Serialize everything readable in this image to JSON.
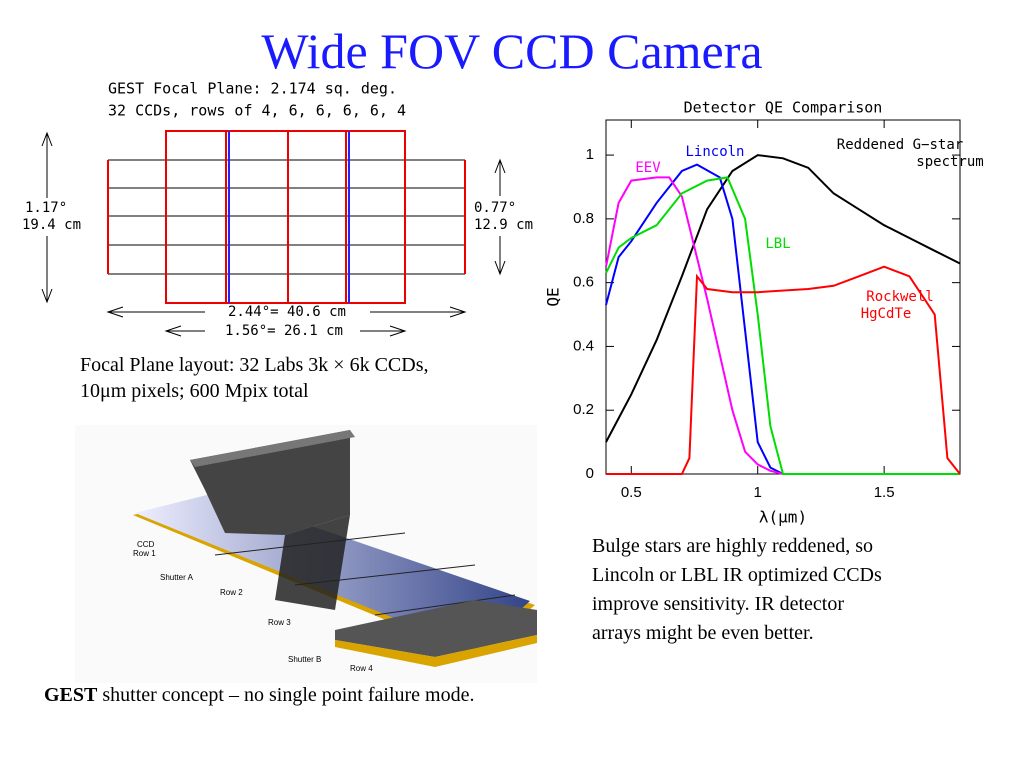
{
  "title": "Wide FOV CCD Camera",
  "focal_plane": {
    "heading_lines": [
      "GEST Focal Plane:    2.174 sq. deg.",
      "32 CCDs, rows of 4, 6, 6, 6, 6, 4"
    ],
    "left_angle": "1.17°",
    "left_size": "19.4 cm",
    "right_angle": "0.77°",
    "right_size": "12.9 cm",
    "bottom_outer": "2.44°= 40.6 cm",
    "bottom_inner": "1.56°= 26.1 cm"
  },
  "focal_caption": [
    "Focal Plane layout: 32 Labs 3k × 6k CCDs,",
    "10μm pixels;  600 Mpix total"
  ],
  "shutter_labels": [
    "CCD",
    "Row 1",
    "Shutter A",
    "Row 2",
    "Row 3",
    "Shutter B",
    "Row 4"
  ],
  "shutter_caption": {
    "bold": "GEST",
    "text": " shutter concept – no single point failure mode."
  },
  "chart_caption": [
    "Bulge stars are highly reddened, so",
    "Lincoln or LBL IR optimized CCDs",
    "improve sensitivity. IR detector",
    "arrays might be even better."
  ],
  "chart_data": {
    "type": "line",
    "title": "Detector QE Comparison",
    "x_label": "λ(μm)",
    "y_label": "QE",
    "xlim": [
      0.4,
      1.8
    ],
    "xticks": [
      0.5,
      1,
      1.5
    ],
    "ylim": [
      0,
      1.11
    ],
    "yticks": [
      0,
      0.2,
      0.4,
      0.6,
      0.8,
      1
    ],
    "series": [
      {
        "label_lines": [
          "Reddened G−star",
          "spectrum"
        ],
        "color": "#000000",
        "x": [
          0.4,
          0.5,
          0.6,
          0.7,
          0.8,
          0.9,
          1.0,
          1.1,
          1.2,
          1.3,
          1.4,
          1.5,
          1.6,
          1.7,
          1.8
        ],
        "values": [
          0.1,
          0.25,
          0.42,
          0.62,
          0.83,
          0.95,
          1.0,
          0.99,
          0.96,
          0.88,
          0.83,
          0.78,
          0.74,
          0.7,
          0.66
        ]
      },
      {
        "label_lines": [
          "Lincoln"
        ],
        "color": "#0000ff",
        "x": [
          0.4,
          0.45,
          0.5,
          0.6,
          0.7,
          0.76,
          0.85,
          0.9,
          0.95,
          1.0,
          1.05,
          1.1,
          1.8
        ],
        "values": [
          0.53,
          0.68,
          0.73,
          0.85,
          0.95,
          0.97,
          0.93,
          0.8,
          0.45,
          0.1,
          0.02,
          0,
          0
        ]
      },
      {
        "label_lines": [
          "EEV"
        ],
        "color": "#ff00ff",
        "x": [
          0.4,
          0.45,
          0.5,
          0.6,
          0.65,
          0.7,
          0.8,
          0.9,
          0.95,
          1.0,
          1.05,
          1.1
        ],
        "values": [
          0.65,
          0.85,
          0.92,
          0.93,
          0.93,
          0.87,
          0.55,
          0.2,
          0.07,
          0.03,
          0.01,
          0
        ]
      },
      {
        "label_lines": [
          "LBL"
        ],
        "color": "#00dd00",
        "x": [
          0.4,
          0.45,
          0.5,
          0.6,
          0.7,
          0.8,
          0.88,
          0.95,
          1.0,
          1.05,
          1.1,
          1.8
        ],
        "values": [
          0.63,
          0.71,
          0.74,
          0.78,
          0.88,
          0.92,
          0.93,
          0.8,
          0.5,
          0.15,
          0,
          0
        ]
      },
      {
        "label_lines": [
          "Rockwell",
          "HgCdTe"
        ],
        "color": "#ff0000",
        "x": [
          0.4,
          0.7,
          0.73,
          0.76,
          0.8,
          0.9,
          1.0,
          1.2,
          1.3,
          1.4,
          1.5,
          1.6,
          1.7,
          1.75,
          1.8
        ],
        "values": [
          0,
          0,
          0.05,
          0.62,
          0.58,
          0.57,
          0.57,
          0.58,
          0.59,
          0.62,
          0.65,
          0.62,
          0.5,
          0.05,
          0
        ]
      }
    ]
  }
}
